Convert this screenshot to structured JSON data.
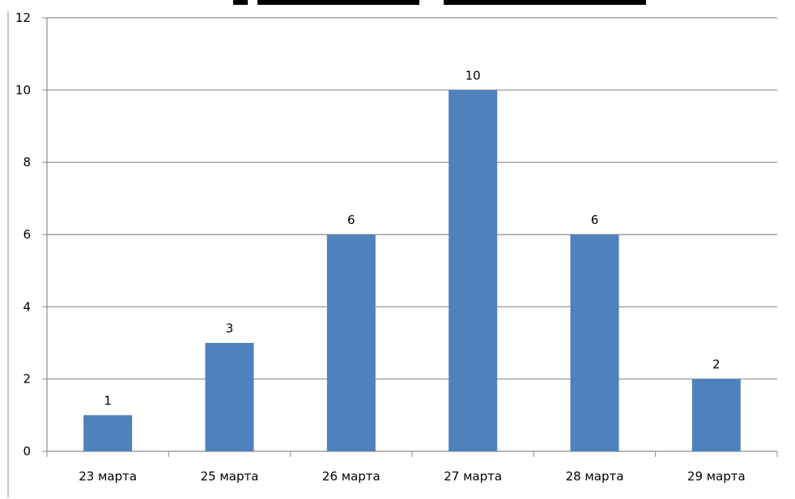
{
  "chart_data": {
    "type": "bar",
    "title": "",
    "xlabel": "",
    "ylabel": "",
    "categories": [
      "23 марта",
      "25 марта",
      "26 марта",
      "27 марта",
      "28 марта",
      "29 марта"
    ],
    "values": [
      1,
      3,
      6,
      10,
      6,
      2
    ],
    "ylim": [
      0,
      12
    ],
    "yticks": [
      "0",
      "2",
      "4",
      "6",
      "8",
      "10",
      "12"
    ],
    "data_labels": [
      "1",
      "3",
      "6",
      "10",
      "6",
      "2"
    ],
    "grid": true,
    "legend": "none",
    "bar_color": "#4f81bd",
    "grid_color": "#8c8c8c"
  }
}
